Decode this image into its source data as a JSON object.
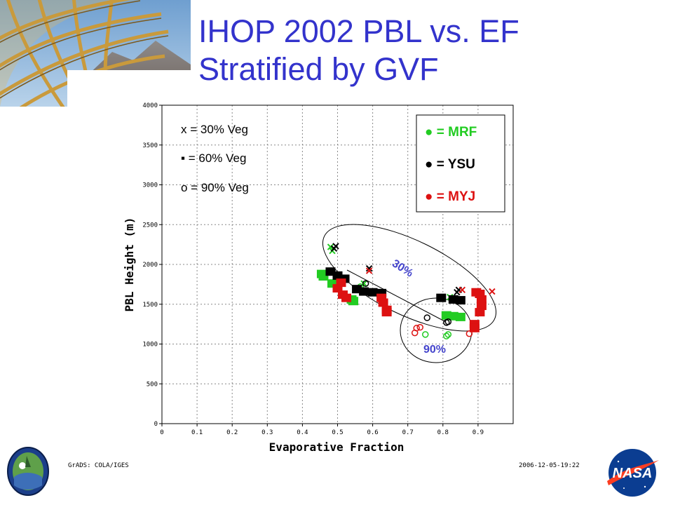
{
  "slide": {
    "title_line1": "IHOP 2002 PBL vs. EF",
    "title_line2": "Stratified by GVF"
  },
  "footer": {
    "left": "GrADS: COLA/IGES",
    "right": "2006-12-05-19:22"
  },
  "notes": [
    "x = 30% Veg",
    "▪ = 60% Veg",
    "o = 90% Veg"
  ],
  "legend": {
    "items": [
      {
        "label": "● = MRF",
        "color": "#22cc22"
      },
      {
        "label": "● = YSU",
        "color": "#000000"
      },
      {
        "label": "● = MYJ",
        "color": "#dd1111"
      }
    ]
  },
  "annotations": {
    "group_30": "30%",
    "group_90": "90%"
  },
  "icons": {
    "left_logo": "mission-emblem-icon",
    "right_logo": "nasa-meatball-icon",
    "banner": "lattice-dome-photo"
  },
  "chart_data": {
    "type": "scatter",
    "title": "",
    "xlabel": "Evaporative Fraction",
    "ylabel": "PBL Height (m)",
    "xlim": [
      0,
      1.0
    ],
    "ylim": [
      0,
      4000
    ],
    "xticks": [
      "0",
      "0.1",
      "0.2",
      "0.3",
      "0.4",
      "0.5",
      "0.6",
      "0.7",
      "0.8",
      "0.9"
    ],
    "yticks": [
      "0",
      "500",
      "1000",
      "1500",
      "2000",
      "2500",
      "3000",
      "3500",
      "4000"
    ],
    "grid": true,
    "legend_position": "top-right",
    "series": [
      {
        "name": "MRF",
        "color": "#22cc22",
        "points": [
          {
            "veg": "30%",
            "x": 0.48,
            "y": 2220
          },
          {
            "veg": "30%",
            "x": 0.485,
            "y": 2170
          },
          {
            "veg": "30%",
            "x": 0.575,
            "y": 1760
          },
          {
            "veg": "30%",
            "x": 0.82,
            "y": 1590
          },
          {
            "veg": "60%",
            "x": 0.455,
            "y": 1880
          },
          {
            "veg": "60%",
            "x": 0.46,
            "y": 1850
          },
          {
            "veg": "60%",
            "x": 0.485,
            "y": 1760
          },
          {
            "veg": "60%",
            "x": 0.54,
            "y": 1560
          },
          {
            "veg": "60%",
            "x": 0.545,
            "y": 1540
          },
          {
            "veg": "60%",
            "x": 0.81,
            "y": 1360
          },
          {
            "veg": "60%",
            "x": 0.83,
            "y": 1350
          },
          {
            "veg": "60%",
            "x": 0.85,
            "y": 1340
          },
          {
            "veg": "90%",
            "x": 0.565,
            "y": 1720
          },
          {
            "veg": "90%",
            "x": 0.75,
            "y": 1120
          },
          {
            "veg": "90%",
            "x": 0.81,
            "y": 1100
          },
          {
            "veg": "90%",
            "x": 0.815,
            "y": 1120
          }
        ]
      },
      {
        "name": "YSU",
        "color": "#000000",
        "points": [
          {
            "veg": "30%",
            "x": 0.49,
            "y": 2200
          },
          {
            "veg": "30%",
            "x": 0.495,
            "y": 2230
          },
          {
            "veg": "30%",
            "x": 0.59,
            "y": 1950
          },
          {
            "veg": "30%",
            "x": 0.84,
            "y": 1650
          },
          {
            "veg": "30%",
            "x": 0.845,
            "y": 1680
          },
          {
            "veg": "60%",
            "x": 0.48,
            "y": 1910
          },
          {
            "veg": "60%",
            "x": 0.5,
            "y": 1860
          },
          {
            "veg": "60%",
            "x": 0.52,
            "y": 1820
          },
          {
            "veg": "60%",
            "x": 0.555,
            "y": 1690
          },
          {
            "veg": "60%",
            "x": 0.575,
            "y": 1660
          },
          {
            "veg": "60%",
            "x": 0.6,
            "y": 1650
          },
          {
            "veg": "60%",
            "x": 0.625,
            "y": 1640
          },
          {
            "veg": "60%",
            "x": 0.795,
            "y": 1580
          },
          {
            "veg": "60%",
            "x": 0.83,
            "y": 1560
          },
          {
            "veg": "60%",
            "x": 0.85,
            "y": 1550
          },
          {
            "veg": "90%",
            "x": 0.58,
            "y": 1760
          },
          {
            "veg": "90%",
            "x": 0.755,
            "y": 1330
          },
          {
            "veg": "90%",
            "x": 0.81,
            "y": 1270
          },
          {
            "veg": "90%",
            "x": 0.815,
            "y": 1280
          }
        ]
      },
      {
        "name": "MYJ",
        "color": "#dd1111",
        "points": [
          {
            "veg": "30%",
            "x": 0.59,
            "y": 1920
          },
          {
            "veg": "30%",
            "x": 0.855,
            "y": 1680
          },
          {
            "veg": "30%",
            "x": 0.94,
            "y": 1660
          },
          {
            "veg": "60%",
            "x": 0.51,
            "y": 1770
          },
          {
            "veg": "60%",
            "x": 0.5,
            "y": 1700
          },
          {
            "veg": "60%",
            "x": 0.515,
            "y": 1620
          },
          {
            "veg": "60%",
            "x": 0.525,
            "y": 1580
          },
          {
            "veg": "60%",
            "x": 0.625,
            "y": 1580
          },
          {
            "veg": "60%",
            "x": 0.63,
            "y": 1520
          },
          {
            "veg": "60%",
            "x": 0.64,
            "y": 1430
          },
          {
            "veg": "60%",
            "x": 0.64,
            "y": 1400
          },
          {
            "veg": "60%",
            "x": 0.895,
            "y": 1650
          },
          {
            "veg": "60%",
            "x": 0.905,
            "y": 1630
          },
          {
            "veg": "60%",
            "x": 0.91,
            "y": 1560
          },
          {
            "veg": "60%",
            "x": 0.91,
            "y": 1480
          },
          {
            "veg": "60%",
            "x": 0.905,
            "y": 1400
          },
          {
            "veg": "60%",
            "x": 0.89,
            "y": 1250
          },
          {
            "veg": "60%",
            "x": 0.89,
            "y": 1200
          },
          {
            "veg": "90%",
            "x": 0.72,
            "y": 1140
          },
          {
            "veg": "90%",
            "x": 0.725,
            "y": 1200
          },
          {
            "veg": "90%",
            "x": 0.735,
            "y": 1210
          },
          {
            "veg": "90%",
            "x": 0.875,
            "y": 1130
          }
        ]
      }
    ]
  }
}
